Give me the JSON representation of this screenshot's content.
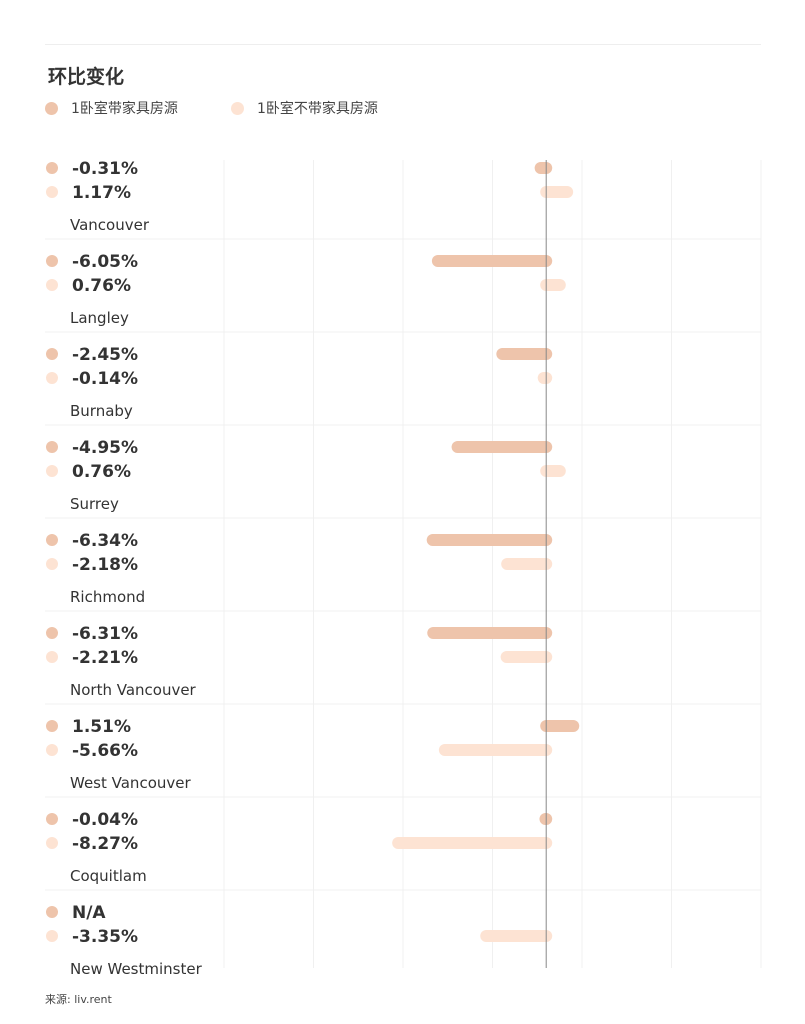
{
  "chart_data": {
    "type": "bar",
    "orientation": "horizontal",
    "title": "环比变化",
    "legend_position": "top-left",
    "grid": true,
    "xlim": [
      -18,
      12
    ],
    "categories": [
      "Vancouver",
      "Langley",
      "Burnaby",
      "Surrey",
      "Richmond",
      "North Vancouver",
      "West Vancouver",
      "Coquitlam",
      "New Westminster"
    ],
    "series": [
      {
        "name": "1卧室带家具房源",
        "color": "#eec4ab",
        "values": [
          -0.31,
          -6.05,
          -2.45,
          -4.95,
          -6.34,
          -6.31,
          1.51,
          -0.04,
          null
        ],
        "labels": [
          "-0.31%",
          "-6.05%",
          "-2.45%",
          "-4.95%",
          "-6.34%",
          "-6.31%",
          "1.51%",
          "-0.04%",
          "N/A"
        ]
      },
      {
        "name": "1卧室不带家具房源",
        "color": "#fde3d3",
        "values": [
          1.17,
          0.76,
          -0.14,
          0.76,
          -2.18,
          -2.21,
          -5.66,
          -8.27,
          -3.35
        ],
        "labels": [
          "1.17%",
          "0.76%",
          "-0.14%",
          "0.76%",
          "-2.18%",
          "-2.21%",
          "-5.66%",
          "-8.27%",
          "-3.35%"
        ]
      }
    ]
  },
  "source": "来源: liv.rent",
  "colors": {
    "grid": "#f0f0f0",
    "axis": "#888888",
    "value_text": "#333333",
    "category_text": "#333333"
  }
}
